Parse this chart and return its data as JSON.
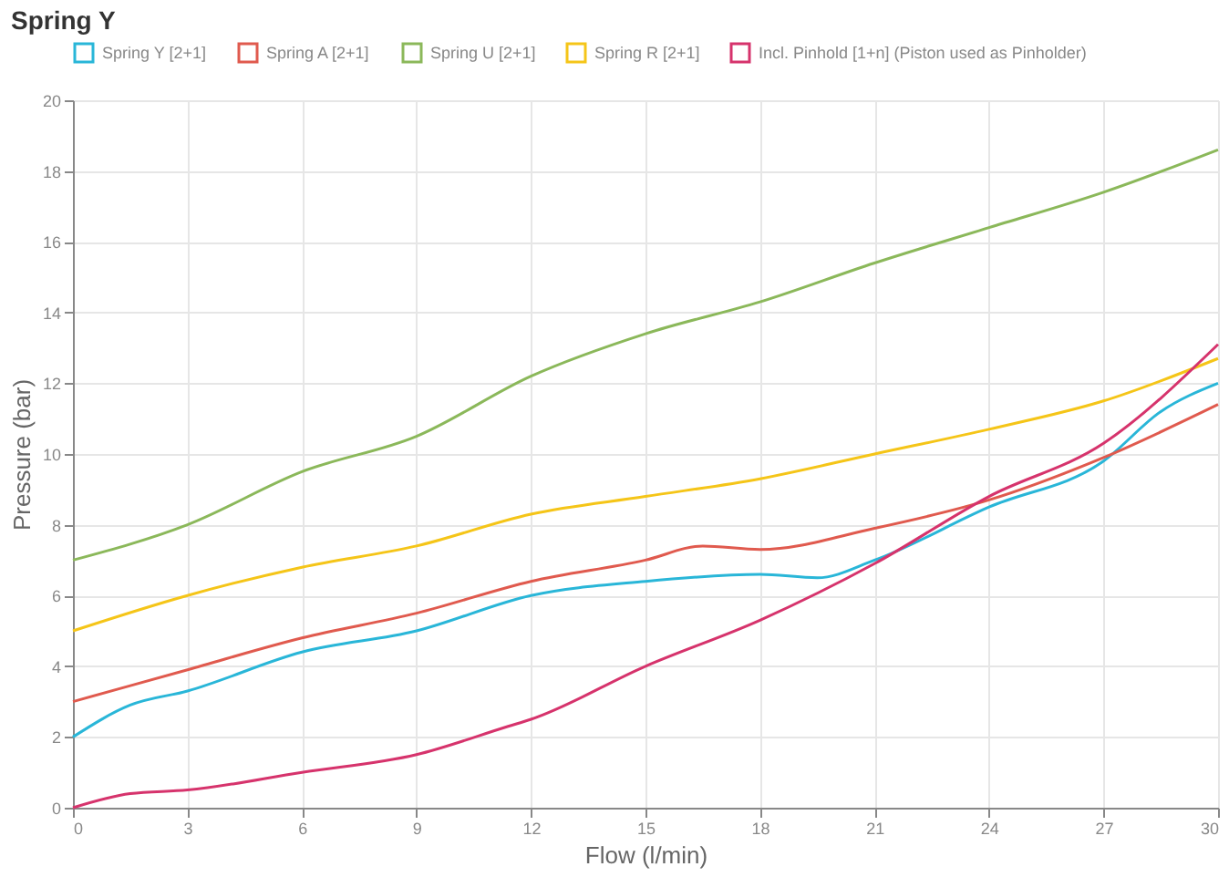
{
  "chart_data": {
    "type": "line",
    "title": "Spring Y",
    "xlabel": "Flow (l/min)",
    "ylabel": "Pressure (bar)",
    "xlim": [
      0,
      30
    ],
    "xticks": [
      0,
      3,
      6,
      9,
      12,
      15,
      18,
      21,
      24,
      27,
      30
    ],
    "ylim": [
      0,
      20
    ],
    "yticks": [
      0,
      2,
      4,
      6,
      8,
      10,
      12,
      14,
      16,
      18,
      20
    ],
    "grid": true,
    "legend": "top",
    "marker": "none",
    "line_style": "solid",
    "series": [
      {
        "name": "Spring Y [2+1]",
        "color": "#29b6d8",
        "x": [
          0,
          1.5,
          3,
          6,
          9,
          12,
          15,
          18,
          19.5,
          21,
          24,
          27,
          28.5,
          30
        ],
        "values": [
          2.0,
          2.9,
          3.3,
          4.4,
          5.0,
          6.0,
          6.4,
          6.6,
          6.5,
          7.0,
          8.5,
          9.8,
          11.2,
          12.0
        ]
      },
      {
        "name": "Spring A [2+1]",
        "color": "#e05a4e",
        "x": [
          0,
          3,
          6,
          9,
          12,
          15,
          16.5,
          18,
          21,
          24,
          27,
          30
        ],
        "values": [
          3.0,
          3.9,
          4.8,
          5.5,
          6.4,
          7.0,
          7.4,
          7.3,
          7.9,
          8.7,
          9.9,
          11.4
        ]
      },
      {
        "name": "Spring U [2+1]",
        "color": "#8bb85a",
        "x": [
          0,
          3,
          6,
          9,
          12,
          15,
          18,
          21,
          24,
          27,
          30
        ],
        "values": [
          7.0,
          8.0,
          9.5,
          10.5,
          12.2,
          13.4,
          14.3,
          15.4,
          16.4,
          17.4,
          18.6
        ]
      },
      {
        "name": "Spring R [2+1]",
        "color": "#f5c518",
        "x": [
          0,
          3,
          6,
          9,
          12,
          15,
          18,
          21,
          24,
          27,
          30
        ],
        "values": [
          5.0,
          6.0,
          6.8,
          7.4,
          8.3,
          8.8,
          9.3,
          10.0,
          10.7,
          11.5,
          12.7
        ]
      },
      {
        "name": "Incl. Pinhold [1+n] (Piston used as Pinholder)",
        "color": "#d6336c",
        "x": [
          0,
          1.5,
          3,
          6,
          9,
          11.4,
          12,
          15,
          18,
          21,
          24,
          27,
          30
        ],
        "values": [
          0,
          0.4,
          0.5,
          1.0,
          1.5,
          2.3,
          2.5,
          4.0,
          5.3,
          6.9,
          8.8,
          10.3,
          13.1
        ]
      }
    ]
  }
}
